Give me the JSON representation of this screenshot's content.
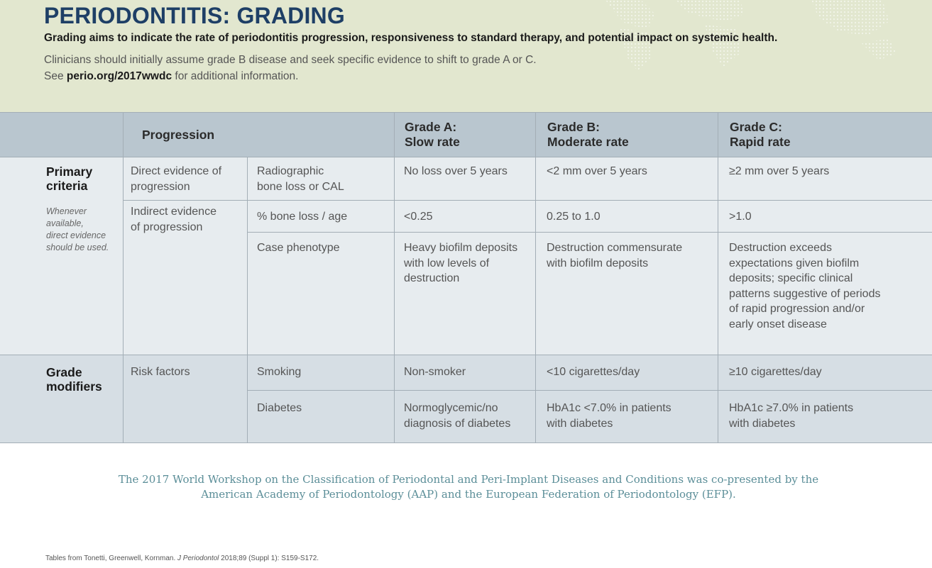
{
  "header": {
    "title": "PERIODONTITIS: GRADING",
    "subtitle": "Grading aims to indicate the rate of periodontitis progression, responsiveness to standard therapy, and potential impact on systemic health.",
    "intro_line1": "Clinicians should initially assume grade B disease and seek specific evidence to shift to grade A or C.",
    "intro_line2_prefix": "See",
    "intro_link": "perio.org/2017wwdc",
    "intro_line2_suffix": "for additional information."
  },
  "table": {
    "columns": {
      "progression": "Progression",
      "grade_a": [
        "Grade A:",
        "Slow rate"
      ],
      "grade_b": [
        "Grade B:",
        "Moderate rate"
      ],
      "grade_c": [
        "Grade C:",
        "Rapid rate"
      ]
    },
    "primary": {
      "label": [
        "Primary",
        "criteria"
      ],
      "note": [
        "Whenever",
        "available,",
        "direct evidence",
        "should be used."
      ],
      "direct": {
        "category": [
          "Direct evidence of",
          "progression"
        ],
        "measure": [
          "Radiographic",
          "bone loss or CAL"
        ],
        "a": "No loss over 5 years",
        "b": "<2 mm over 5 years",
        "c": "≥2 mm over 5 years"
      },
      "indirect": {
        "category": [
          "Indirect evidence",
          "of progression"
        ],
        "rows": [
          {
            "measure": "% bone loss / age",
            "a": [
              "<0.25"
            ],
            "b": [
              "0.25 to 1.0"
            ],
            "c": [
              ">1.0"
            ]
          },
          {
            "measure": "Case phenotype",
            "a": [
              "Heavy biofilm deposits",
              "with low levels of",
              "destruction"
            ],
            "b": [
              "Destruction commensurate",
              "with biofilm deposits"
            ],
            "c": [
              "Destruction exceeds",
              "expectations given biofilm",
              "deposits; specific clinical",
              "patterns suggestive of periods",
              "of rapid progression and/or",
              "early onset disease"
            ]
          }
        ]
      }
    },
    "modifiers": {
      "label": [
        "Grade",
        "modifiers"
      ],
      "category": "Risk factors",
      "rows": [
        {
          "measure": "Smoking",
          "a": [
            "Non-smoker"
          ],
          "b": [
            "<10 cigarettes/day"
          ],
          "c": [
            "≥10 cigarettes/day"
          ]
        },
        {
          "measure": "Diabetes",
          "a": [
            "Normoglycemic/no",
            "diagnosis of diabetes"
          ],
          "b": [
            "HbA1c <7.0% in patients",
            "with diabetes"
          ],
          "c": [
            "HbA1c ≥7.0% in patients",
            "with diabetes"
          ]
        }
      ]
    }
  },
  "footer": {
    "line1": "The 2017 World Workshop on the Classification of Periodontal and Peri-Implant Diseases and Conditions was co-presented by the",
    "line2": "American Academy of Periodontology (AAP) and the European Federation of Periodontology (EFP).",
    "source_prefix": "Tables from Tonetti, Greenwell, Kornman.",
    "source_journal": "J Periodontol",
    "source_suffix": "2018;89 (Suppl 1): S159-S172."
  },
  "colors": {
    "header_bg": "#e2e7cf",
    "title": "#1e3f66",
    "table_head": "#b9c6cf",
    "primary_bg": "#e7ecef",
    "modifiers_bg": "#d6dee4",
    "footer_text": "#5b8e98"
  }
}
